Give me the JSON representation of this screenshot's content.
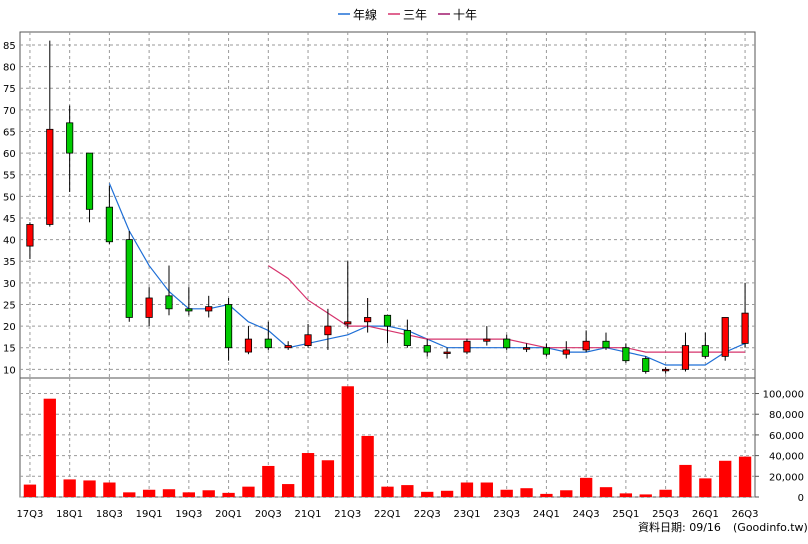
{
  "chart_data": {
    "type": "candlestick+bar",
    "legend": {
      "placement": "top-center",
      "items": [
        {
          "name": "年線",
          "color": "#1f6fd6"
        },
        {
          "name": "三年",
          "color": "#d6336c"
        },
        {
          "name": "十年",
          "color": "#a0186c"
        }
      ]
    },
    "x_ticks": [
      "17Q3",
      "18Q1",
      "18Q3",
      "19Q1",
      "19Q3",
      "20Q1",
      "20Q3",
      "21Q1",
      "21Q3",
      "22Q1",
      "22Q3",
      "23Q1",
      "23Q3",
      "24Q1",
      "24Q3",
      "25Q1",
      "25Q3",
      "26Q1",
      "26Q3"
    ],
    "price_axis": {
      "ticks": [
        10,
        15,
        20,
        25,
        30,
        35,
        40,
        45,
        50,
        55,
        60,
        65,
        70,
        75,
        80,
        85
      ],
      "range": [
        8,
        88
      ]
    },
    "volume_axis": {
      "ticks": [
        "0",
        "20,000",
        "40,000",
        "60,000",
        "80,000",
        "100,000"
      ],
      "range": [
        0,
        115000
      ]
    },
    "up_color": "#ff0000",
    "down_color": "#00cc00",
    "candles": [
      {
        "q": "17Q3",
        "open": 38.5,
        "high": 44,
        "low": 35.5,
        "close": 43.5
      },
      {
        "q": "17Q4",
        "open": 43.5,
        "high": 86,
        "low": 43,
        "close": 65.5
      },
      {
        "q": "18Q1",
        "open": 67,
        "high": 71,
        "low": 51,
        "close": 60
      },
      {
        "q": "18Q2",
        "open": 60,
        "high": 60,
        "low": 44,
        "close": 47
      },
      {
        "q": "18Q3",
        "open": 47.5,
        "high": 52.5,
        "low": 39,
        "close": 39.5
      },
      {
        "q": "18Q4",
        "open": 40,
        "high": 42,
        "low": 21,
        "close": 22
      },
      {
        "q": "19Q1",
        "open": 22,
        "high": 29,
        "low": 20,
        "close": 26.5
      },
      {
        "q": "19Q2",
        "open": 27,
        "high": 34,
        "low": 22.5,
        "close": 24
      },
      {
        "q": "19Q3",
        "open": 24,
        "high": 29,
        "low": 22.5,
        "close": 23.5
      },
      {
        "q": "19Q4",
        "open": 23.5,
        "high": 27,
        "low": 22,
        "close": 24.5
      },
      {
        "q": "20Q1",
        "open": 25,
        "high": 26.5,
        "low": 12,
        "close": 15
      },
      {
        "q": "20Q2",
        "open": 14,
        "high": 20,
        "low": 13.5,
        "close": 17
      },
      {
        "q": "20Q3",
        "open": 17,
        "high": 21,
        "low": 14.5,
        "close": 15
      },
      {
        "q": "20Q4",
        "open": 15,
        "high": 16.5,
        "low": 14.5,
        "close": 15.5
      },
      {
        "q": "21Q1",
        "open": 15.5,
        "high": 20.5,
        "low": 15,
        "close": 18
      },
      {
        "q": "21Q2",
        "open": 18,
        "high": 24,
        "low": 14.5,
        "close": 20
      },
      {
        "q": "21Q3",
        "open": 20.5,
        "high": 35,
        "low": 19.5,
        "close": 21
      },
      {
        "q": "21Q4",
        "open": 21,
        "high": 26.5,
        "low": 18.5,
        "close": 22
      },
      {
        "q": "22Q1",
        "open": 22.5,
        "high": 22.5,
        "low": 16,
        "close": 20
      },
      {
        "q": "22Q2",
        "open": 19,
        "high": 21.5,
        "low": 15,
        "close": 15.5
      },
      {
        "q": "22Q3",
        "open": 15.5,
        "high": 17,
        "low": 13,
        "close": 14
      },
      {
        "q": "22Q4",
        "open": 14,
        "high": 15,
        "low": 12.5,
        "close": 14
      },
      {
        "q": "23Q1",
        "open": 14,
        "high": 17,
        "low": 13.5,
        "close": 16.5
      },
      {
        "q": "23Q2",
        "open": 16.5,
        "high": 20,
        "low": 15.5,
        "close": 17
      },
      {
        "q": "23Q3",
        "open": 17,
        "high": 18,
        "low": 14.5,
        "close": 15
      },
      {
        "q": "23Q4",
        "open": 15,
        "high": 16,
        "low": 14,
        "close": 15
      },
      {
        "q": "24Q1",
        "open": 15,
        "high": 16,
        "low": 13,
        "close": 13.5
      },
      {
        "q": "24Q2",
        "open": 13.5,
        "high": 16.5,
        "low": 12.5,
        "close": 14.5
      },
      {
        "q": "24Q3",
        "open": 14.5,
        "high": 19,
        "low": 14,
        "close": 16.5
      },
      {
        "q": "24Q4",
        "open": 16.5,
        "high": 18.5,
        "low": 14.5,
        "close": 15
      },
      {
        "q": "25Q1",
        "open": 15,
        "high": 16,
        "low": 11.5,
        "close": 12
      },
      {
        "q": "25Q2",
        "open": 12.5,
        "high": 13,
        "low": 9,
        "close": 9.5
      },
      {
        "q": "25Q3",
        "open": 10,
        "high": 10.5,
        "low": 9,
        "close": 10
      },
      {
        "q": "25Q4",
        "open": 10,
        "high": 18.5,
        "low": 9.5,
        "close": 15.5
      },
      {
        "q": "26Q1",
        "open": 15.5,
        "high": 18.5,
        "low": 12.5,
        "close": 13
      },
      {
        "q": "26Q2",
        "open": 13,
        "high": 22,
        "low": 12,
        "close": 22
      },
      {
        "q": "26Q3",
        "open": 16,
        "high": 30,
        "low": 15,
        "close": 23
      }
    ],
    "volume": [
      12000,
      95000,
      17000,
      16000,
      14000,
      4500,
      7000,
      7500,
      4500,
      6500,
      4000,
      10000,
      30000,
      12500,
      42500,
      35500,
      107000,
      59000,
      10000,
      11500,
      5000,
      6000,
      14000,
      14000,
      7000,
      8500,
      3000,
      6500,
      18500,
      9500,
      3500,
      2500,
      7000,
      31000,
      18000,
      35000,
      39000
    ],
    "series": [
      {
        "name": "年線",
        "values": [
          null,
          null,
          null,
          null,
          53,
          42,
          34,
          28,
          24,
          24,
          25,
          21,
          19,
          15,
          16,
          17,
          18,
          20,
          20,
          19,
          17,
          15,
          15,
          15,
          15,
          15,
          15,
          14,
          14,
          15,
          14,
          13,
          11,
          11,
          11,
          14,
          16
        ]
      },
      {
        "name": "三年",
        "values": [
          null,
          null,
          null,
          null,
          null,
          null,
          null,
          null,
          null,
          null,
          null,
          null,
          34,
          31,
          26,
          23,
          20,
          20,
          19,
          18,
          17,
          17,
          17,
          17,
          17,
          16,
          15,
          15,
          15,
          15,
          15,
          14,
          14,
          14,
          14,
          14,
          14
        ]
      },
      {
        "name": "十年",
        "values": [
          null,
          null,
          null,
          null,
          null,
          null,
          null,
          null,
          null,
          null,
          null,
          null,
          null,
          null,
          null,
          null,
          null,
          null,
          null,
          null,
          null,
          null,
          null,
          null,
          null,
          null,
          null,
          null,
          null,
          null,
          null,
          null,
          null,
          null,
          null,
          null,
          null
        ]
      }
    ]
  },
  "footer": {
    "date_label": "資料日期: 09/16",
    "source": "(Goodinfo.tw)"
  }
}
